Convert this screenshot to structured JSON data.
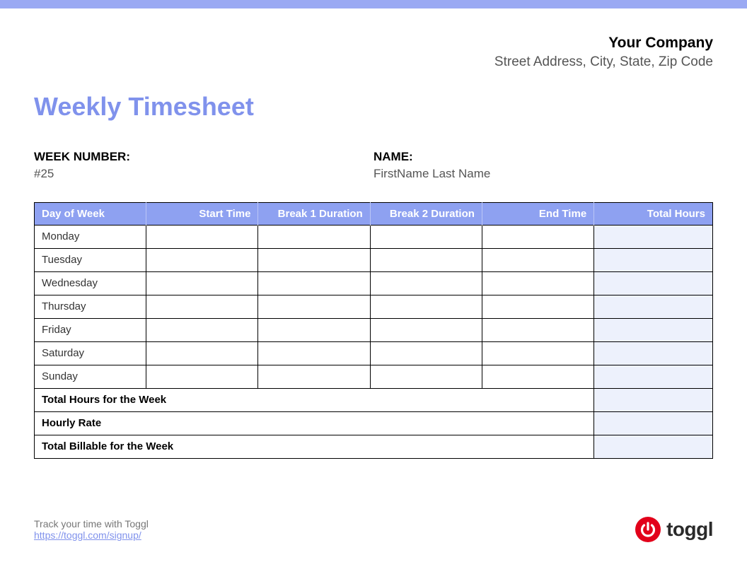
{
  "colors": {
    "top_bar": "#9aa9f3",
    "accent_text": "#8092ec",
    "header_bg": "#8ea1f1",
    "totals_bg": "#edf1fc",
    "footer_link": "#8092ec",
    "logo_red": "#e2001a",
    "logo_text": "#2a2a2a",
    "border": "#000000"
  },
  "company": {
    "name": "Your Company",
    "address": "Street Address, City, State, Zip Code"
  },
  "title": "Weekly Timesheet",
  "meta": {
    "week_label": "WEEK NUMBER:",
    "week_value": "#25",
    "name_label": "NAME:",
    "name_value": "FirstName Last Name"
  },
  "table": {
    "columns": [
      "Day of Week",
      "Start Time",
      "Break 1 Duration",
      "Break 2 Duration",
      "End Time",
      "Total Hours"
    ],
    "col_widths_pct": [
      16.5,
      16.5,
      16.5,
      16.5,
      16.5,
      17.5
    ],
    "days": [
      "Monday",
      "Tuesday",
      "Wednesday",
      "Thursday",
      "Friday",
      "Saturday",
      "Sunday"
    ],
    "summary_rows": [
      {
        "label": "Total Hours for the Week"
      },
      {
        "label": "Hourly Rate"
      },
      {
        "label": "Total Billable for the Week"
      }
    ]
  },
  "footer": {
    "text": "Track your time with Toggl",
    "link_text": "https://toggl.com/signup/",
    "logo_text": "toggl"
  }
}
